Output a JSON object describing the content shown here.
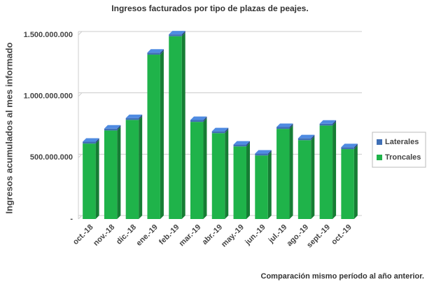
{
  "chart_data": {
    "type": "bar",
    "stacked": true,
    "title": "Ingresos facturados por tipo de plazas de peajes.",
    "y_label": "Ingresos acumulados al mes informado",
    "annotation": "Comparación mismo período al año anterior.",
    "categories": [
      "oct.-18",
      "nov.-18",
      "dic.-18",
      "ene.-19",
      "feb.-19",
      "mar.-19",
      "abr.-19",
      "may.-19",
      "jun.-19",
      "jul.-19",
      "ago.-19",
      "sept.-19",
      "oct.-19"
    ],
    "series": [
      {
        "name": "Troncales",
        "color": "#1fb34a",
        "values": [
          615000000,
          722000000,
          808000000,
          1340000000,
          1490000000,
          792000000,
          700000000,
          592000000,
          518000000,
          735000000,
          643000000,
          762000000,
          570000000
        ]
      },
      {
        "name": "Laterales",
        "color": "#3f6fb5",
        "values": [
          15000000,
          15000000,
          15000000,
          16000000,
          15000000,
          15000000,
          15000000,
          15000000,
          15000000,
          15000000,
          15000000,
          15000000,
          15000000
        ]
      }
    ],
    "ylim": [
      0,
      1500000000
    ],
    "yticks": [
      {
        "value": 0,
        "label": "-"
      },
      {
        "value": 500000000,
        "label": "500.000.000"
      },
      {
        "value": 1000000000,
        "label": "1.000.000.000"
      },
      {
        "value": 1500000000,
        "label": "1.500.000.000"
      }
    ],
    "grid": true,
    "legend": "right"
  }
}
